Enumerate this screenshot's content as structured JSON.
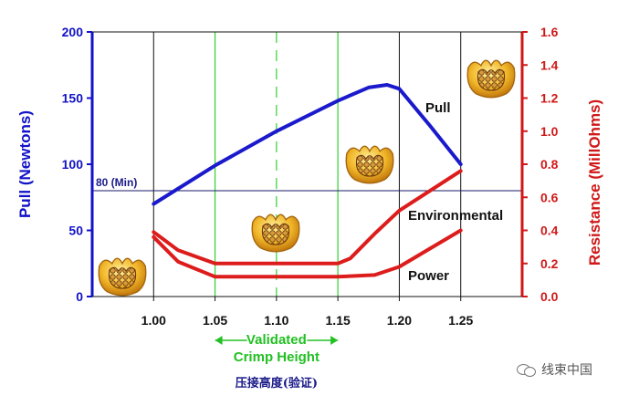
{
  "chart_data": {
    "type": "line",
    "xlabel": "",
    "caption_cn": "压接高度(验证)",
    "x_ticks": [
      "1.00",
      "1.05",
      "1.10",
      "1.15",
      "1.20",
      "1.25"
    ],
    "x_range": [
      0.95,
      1.3
    ],
    "left_axis": {
      "label": "Pull (Newtons)",
      "range": [
        0,
        200
      ],
      "ticks": [
        "0",
        "50",
        "100",
        "150",
        "200"
      ],
      "color": "#1212c8"
    },
    "right_axis": {
      "label": "Resistance (MillOhms)",
      "range": [
        0,
        1.6
      ],
      "ticks": [
        "0.0",
        "0.2",
        "0.4",
        "0.6",
        "0.8",
        "1.0",
        "1.2",
        "1.4",
        "1.6"
      ],
      "color": "#d01818"
    },
    "reference_line": {
      "label": "80 (Min)",
      "value": 80,
      "axis": "left"
    },
    "validated_range": {
      "label_line1": "Validated",
      "label_line2": "Crimp Height",
      "from": 1.05,
      "to": 1.15,
      "center": 1.1
    },
    "series": [
      {
        "name": "Pull",
        "axis": "left",
        "color": "#1a1acc",
        "x": [
          1.0,
          1.05,
          1.1,
          1.15,
          1.175,
          1.19,
          1.2,
          1.225,
          1.25
        ],
        "y": [
          70,
          99,
          125,
          148,
          158,
          160,
          157,
          129,
          100
        ]
      },
      {
        "name": "Environmental",
        "axis": "right",
        "color": "#dd1c1c",
        "x": [
          1.0,
          1.02,
          1.05,
          1.1,
          1.15,
          1.16,
          1.18,
          1.2,
          1.25
        ],
        "y": [
          0.39,
          0.28,
          0.2,
          0.2,
          0.2,
          0.23,
          0.38,
          0.52,
          0.76
        ]
      },
      {
        "name": "Power",
        "axis": "right",
        "color": "#dd1c1c",
        "x": [
          1.0,
          1.02,
          1.05,
          1.1,
          1.15,
          1.18,
          1.2,
          1.225,
          1.25
        ],
        "y": [
          0.36,
          0.21,
          0.12,
          0.12,
          0.12,
          0.13,
          0.18,
          0.29,
          0.4
        ]
      }
    ],
    "grid": {
      "vertical_x": [
        1.0,
        1.2,
        1.25
      ],
      "green_x": [
        1.05,
        1.15
      ],
      "green_dashed_x": [
        1.1
      ]
    }
  },
  "watermark": {
    "text": "线束中国"
  }
}
